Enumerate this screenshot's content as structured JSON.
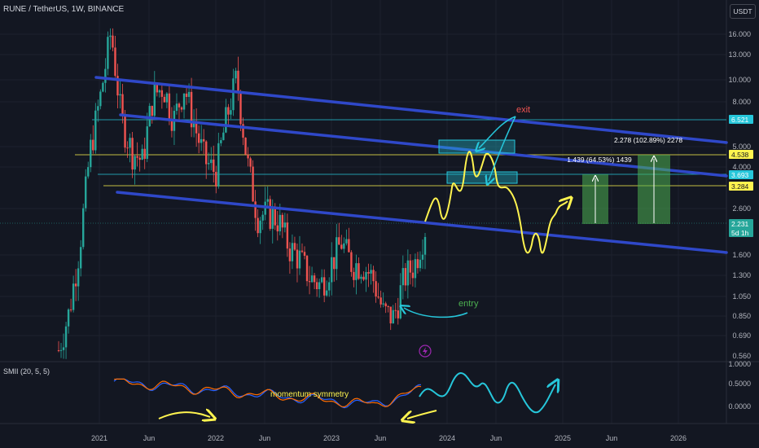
{
  "header": {
    "title": "RUNE / TetherUS, 1W, BINANCE",
    "unit": "USDT"
  },
  "indicator": {
    "title": "SMII (20, 5, 5)"
  },
  "colors": {
    "background": "#131722",
    "up": "#26a69a",
    "down": "#ef5350",
    "channel": "#2f48c9",
    "yellow": "#fff44f",
    "cyan": "#26c6da",
    "smii_blue": "#2962ff",
    "smii_orange": "#ff6d00",
    "green_box": "#4caf50"
  },
  "chart_data": [
    {
      "type": "candlestick",
      "title": "RUNE / TetherUS, 1W, BINANCE",
      "yscale": "log",
      "ylim": [
        0.55,
        24
      ],
      "x_tick_labels": [
        "2021",
        "Jun",
        "2022",
        "Jun",
        "2023",
        "Jun",
        "2024",
        "Jun",
        "2025",
        "Jun",
        "2026"
      ],
      "y_tick_labels": [
        "16.000",
        "13.000",
        "10.000",
        "8.000",
        "5.000",
        "4.000",
        "2.600",
        "1.600",
        "1.300",
        "1.050",
        "0.850",
        "0.690",
        "0.560"
      ],
      "price_labels": [
        {
          "value": "6.521",
          "color": "cyan"
        },
        {
          "value": "4.538",
          "color": "yellow"
        },
        {
          "value": "3.693",
          "color": "cyan"
        },
        {
          "value": "3.284",
          "color": "yellow"
        },
        {
          "value": "2.231",
          "sub": "5d 1h",
          "color": "up"
        }
      ],
      "series": [
        {
          "name": "",
          "x": [
            "2020-11",
            "2020-12",
            "2021-01",
            "2021-02",
            "2021-03",
            "2021-04",
            "2021-05",
            "2021-06",
            "2021-07",
            "2021-08",
            "2021-09",
            "2021-10",
            "2021-11",
            "2021-12",
            "2022-01",
            "2022-02",
            "2022-03",
            "2022-04",
            "2022-05",
            "2022-06",
            "2022-07",
            "2022-08",
            "2022-09",
            "2022-10",
            "2022-11",
            "2022-12",
            "2023-01",
            "2023-02",
            "2023-03",
            "2023-04",
            "2023-05",
            "2023-06",
            "2023-07",
            "2023-08",
            "2023-09",
            "2023-10"
          ],
          "values": [
            0.6,
            0.9,
            1.8,
            5.0,
            9.0,
            18.0,
            7.0,
            5.0,
            4.5,
            9.0,
            10.0,
            7.0,
            10.0,
            6.5,
            4.5,
            4.0,
            7.0,
            11.0,
            4.5,
            2.5,
            2.6,
            2.4,
            1.8,
            1.6,
            1.3,
            1.2,
            1.5,
            1.9,
            1.5,
            1.5,
            1.3,
            0.9,
            0.85,
            1.3,
            1.5,
            2.2
          ]
        }
      ],
      "annotations": [
        {
          "text": "2.278 (102.89%) 2278",
          "kind": "measure-box"
        },
        {
          "text": "1.439 (64.53%) 1439",
          "kind": "measure-box"
        },
        {
          "text": "exit",
          "color": "red"
        },
        {
          "text": "entry",
          "color": "green"
        }
      ]
    },
    {
      "type": "line",
      "title": "SMII (20, 5, 5)",
      "ylim": [
        -0.15,
        1.0
      ],
      "y_tick_labels": [
        "1.0000",
        "0.5000",
        "0.0000"
      ],
      "annotations": [
        {
          "text": "momentum symmetry",
          "color": "yellow"
        }
      ]
    }
  ]
}
